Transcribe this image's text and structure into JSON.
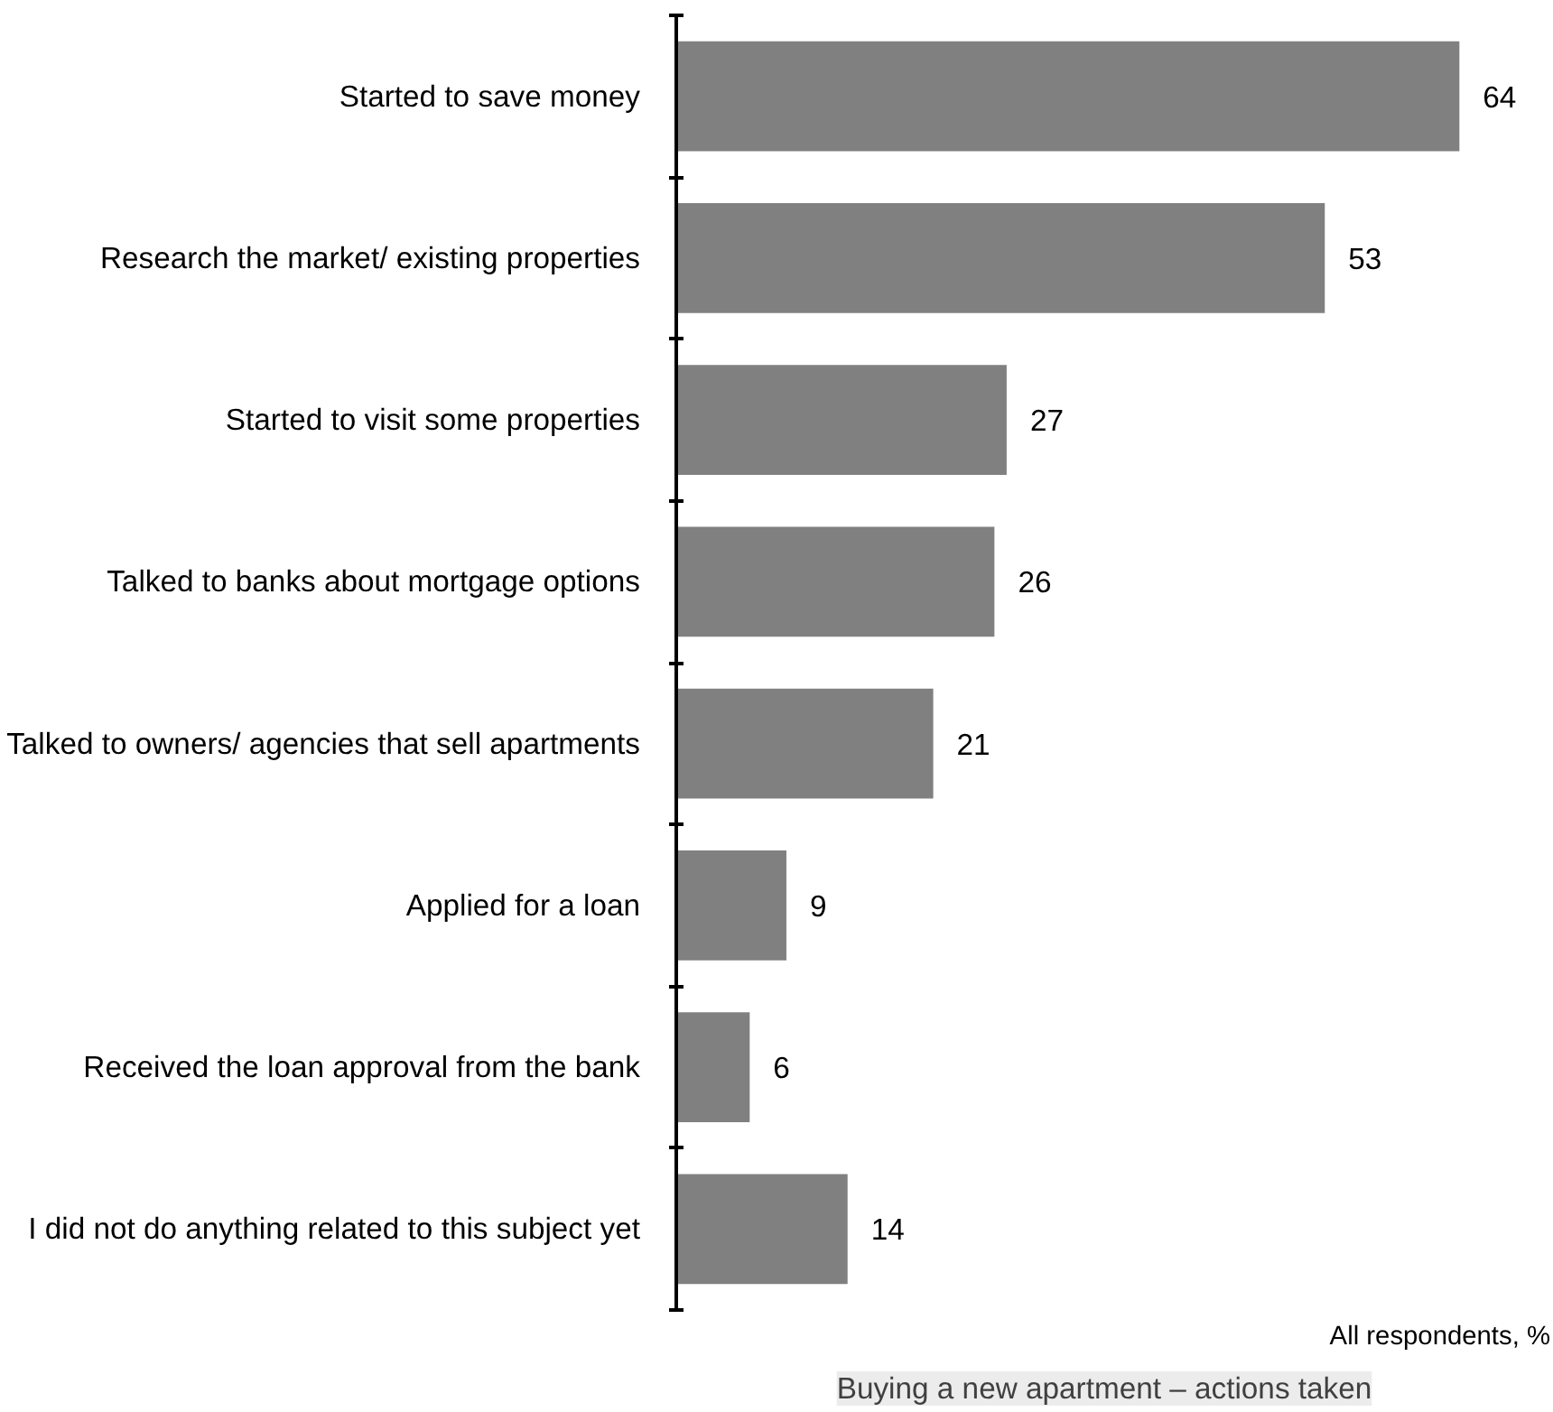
{
  "chart_data": {
    "type": "bar",
    "orientation": "horizontal",
    "title": "Buying a new apartment – actions taken",
    "categories": [
      "Started to save money",
      "Research the market/ existing properties",
      "Started to visit some properties",
      "Talked to banks about mortgage options",
      "Talked to owners/ agencies that sell apartments",
      "Applied for a loan",
      "Received the loan approval from the bank",
      "I did not do anything related to this subject yet"
    ],
    "values": [
      64,
      53,
      27,
      26,
      21,
      9,
      6,
      14
    ],
    "color": "#808080",
    "data_labels": true,
    "annotations": [
      "All respondents, %"
    ]
  }
}
